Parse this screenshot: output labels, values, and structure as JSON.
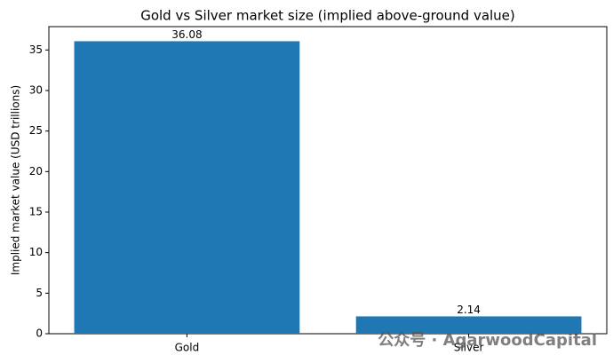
{
  "chart_data": {
    "type": "bar",
    "title": "Gold vs Silver market size (implied above-ground value)",
    "y_label": "Implied market value (USD trillions)",
    "categories": [
      "Gold",
      "Silver"
    ],
    "values": [
      36.08,
      2.14
    ],
    "color": "#1f77b4",
    "ylim": [
      0,
      37.88
    ],
    "yticks": [
      0,
      5,
      10,
      15,
      20,
      25,
      30,
      35
    ],
    "grid": false,
    "watermark": "公众号 · AgarwoodCapital"
  }
}
